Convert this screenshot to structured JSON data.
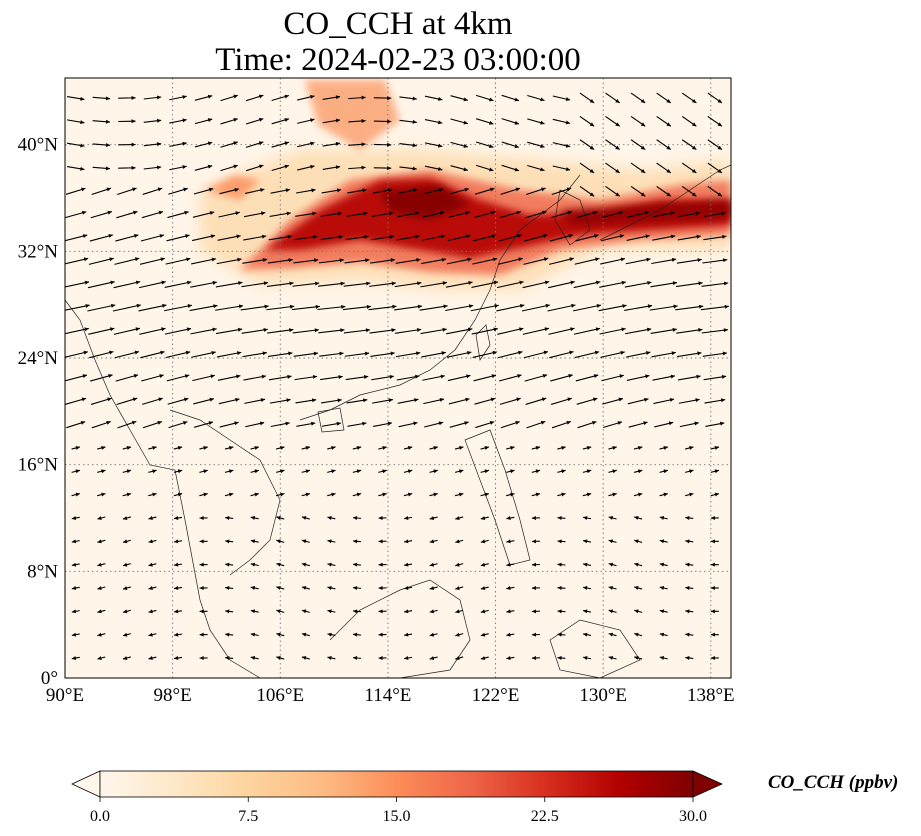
{
  "title": {
    "line1": "CO_CCH at 4km",
    "line2": "Time: 2024-02-23 03:00:00"
  },
  "map": {
    "extent": {
      "lon_min": 90,
      "lon_max": 139.5,
      "lat_min": 0,
      "lat_max": 45
    },
    "lon_ticks": [
      {
        "value": 90,
        "label": "90°E"
      },
      {
        "value": 98,
        "label": "98°E"
      },
      {
        "value": 106,
        "label": "106°E"
      },
      {
        "value": 114,
        "label": "114°E"
      },
      {
        "value": 122,
        "label": "122°E"
      },
      {
        "value": 130,
        "label": "130°E"
      },
      {
        "value": 138,
        "label": "138°E"
      }
    ],
    "lat_ticks": [
      {
        "value": 0,
        "label": "0°"
      },
      {
        "value": 8,
        "label": "8°N"
      },
      {
        "value": 16,
        "label": "16°N"
      },
      {
        "value": 24,
        "label": "24°N"
      },
      {
        "value": 32,
        "label": "32°N"
      },
      {
        "value": 40,
        "label": "40°N"
      }
    ],
    "gridlines": "dotted",
    "overlay": "wind vectors (quiver)"
  },
  "colorbar": {
    "label": "CO_CCH (ppbv)",
    "colormap": "OrRd",
    "extend": "both",
    "min": 0,
    "max": 30,
    "ticks": [
      {
        "value": 0,
        "label": "0.0"
      },
      {
        "value": 7.5,
        "label": "7.5"
      },
      {
        "value": 15,
        "label": "15.0"
      },
      {
        "value": 22.5,
        "label": "22.5"
      },
      {
        "value": 30,
        "label": "30.0"
      }
    ],
    "colors": [
      "#fff7ec",
      "#fee8c8",
      "#fdd49e",
      "#fdbb84",
      "#fc8d59",
      "#ef6548",
      "#d7301f",
      "#b30000",
      "#7f0000"
    ]
  }
}
